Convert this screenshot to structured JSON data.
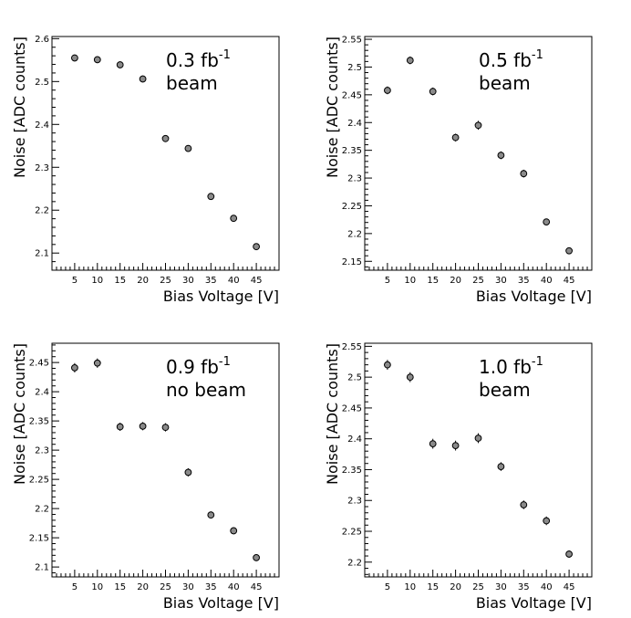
{
  "chart_data": [
    {
      "type": "scatter",
      "x": [
        5,
        10,
        15,
        20,
        25,
        30,
        35,
        40,
        45
      ],
      "values": [
        2.555,
        2.551,
        2.539,
        2.506,
        2.367,
        2.344,
        2.232,
        2.181,
        2.115
      ],
      "errors": [
        0.008,
        0.008,
        0.008,
        0.008,
        0.006,
        0.006,
        0.006,
        0.006,
        0.006
      ],
      "xlabel": "Bias Voltage [V]",
      "ylabel": "Noise [ADC counts]",
      "xlim": [
        0,
        50
      ],
      "ylim": [
        2.06,
        2.605
      ],
      "xticks": [
        5,
        10,
        15,
        20,
        25,
        30,
        35,
        40,
        45
      ],
      "xtick_labels": [
        "5",
        "10",
        "15",
        "20",
        "25",
        "30",
        "35",
        "40",
        "45"
      ],
      "yticks": [
        2.1,
        2.2,
        2.3,
        2.4,
        2.5,
        2.6
      ],
      "ytick_labels": [
        "2.1",
        "2.2",
        "2.3",
        "2.4",
        "2.5",
        "2.6"
      ],
      "annotation": {
        "lumi": "0.3 fb",
        "exponent": "-1",
        "condition": "beam"
      }
    },
    {
      "type": "scatter",
      "x": [
        5,
        10,
        15,
        20,
        25,
        30,
        35,
        40,
        45
      ],
      "values": [
        2.458,
        2.512,
        2.456,
        2.373,
        2.395,
        2.341,
        2.308,
        2.221,
        2.169
      ],
      "errors": [
        0.007,
        0.007,
        0.007,
        0.007,
        0.008,
        0.007,
        0.007,
        0.006,
        0.006
      ],
      "xlabel": "Bias Voltage [V]",
      "ylabel": "Noise [ADC counts]",
      "xlim": [
        0,
        50
      ],
      "ylim": [
        2.134,
        2.555
      ],
      "xticks": [
        5,
        10,
        15,
        20,
        25,
        30,
        35,
        40,
        45
      ],
      "xtick_labels": [
        "5",
        "10",
        "15",
        "20",
        "25",
        "30",
        "35",
        "40",
        "45"
      ],
      "yticks": [
        2.15,
        2.2,
        2.25,
        2.3,
        2.35,
        2.4,
        2.45,
        2.5,
        2.55
      ],
      "ytick_labels": [
        "2.15",
        "2.2",
        "2.25",
        "2.3",
        "2.35",
        "2.4",
        "2.45",
        "2.5",
        "2.55"
      ],
      "annotation": {
        "lumi": "0.5 fb",
        "exponent": "-1",
        "condition": "beam"
      }
    },
    {
      "type": "scatter",
      "x": [
        5,
        10,
        15,
        20,
        25,
        30,
        35,
        40,
        45
      ],
      "values": [
        2.441,
        2.449,
        2.34,
        2.341,
        2.339,
        2.262,
        2.189,
        2.162,
        2.116
      ],
      "errors": [
        0.008,
        0.008,
        0.007,
        0.007,
        0.007,
        0.007,
        0.006,
        0.006,
        0.006
      ],
      "xlabel": "Bias Voltage [V]",
      "ylabel": "Noise [ADC counts]",
      "xlim": [
        0,
        50
      ],
      "ylim": [
        2.083,
        2.483
      ],
      "xticks": [
        5,
        10,
        15,
        20,
        25,
        30,
        35,
        40,
        45
      ],
      "xtick_labels": [
        "5",
        "10",
        "15",
        "20",
        "25",
        "30",
        "35",
        "40",
        "45"
      ],
      "yticks": [
        2.1,
        2.15,
        2.2,
        2.25,
        2.3,
        2.35,
        2.4,
        2.45
      ],
      "ytick_labels": [
        "2.1",
        "2.15",
        "2.2",
        "2.25",
        "2.3",
        "2.35",
        "2.4",
        "2.45"
      ],
      "annotation": {
        "lumi": "0.9 fb",
        "exponent": "-1",
        "condition": "no beam"
      }
    },
    {
      "type": "scatter",
      "x": [
        5,
        10,
        15,
        20,
        25,
        30,
        35,
        40,
        45
      ],
      "values": [
        2.52,
        2.5,
        2.392,
        2.389,
        2.401,
        2.355,
        2.293,
        2.267,
        2.213
      ],
      "errors": [
        0.008,
        0.008,
        0.008,
        0.008,
        0.008,
        0.007,
        0.007,
        0.007,
        0.006
      ],
      "xlabel": "Bias Voltage [V]",
      "ylabel": "Noise [ADC counts]",
      "xlim": [
        0,
        50
      ],
      "ylim": [
        2.176,
        2.555
      ],
      "xticks": [
        5,
        10,
        15,
        20,
        25,
        30,
        35,
        40,
        45
      ],
      "xtick_labels": [
        "5",
        "10",
        "15",
        "20",
        "25",
        "30",
        "35",
        "40",
        "45"
      ],
      "yticks": [
        2.2,
        2.25,
        2.3,
        2.35,
        2.4,
        2.45,
        2.5,
        2.55
      ],
      "ytick_labels": [
        "2.2",
        "2.25",
        "2.3",
        "2.35",
        "2.4",
        "2.45",
        "2.5",
        "2.55"
      ],
      "annotation": {
        "lumi": "1.0 fb",
        "exponent": "-1",
        "condition": "beam"
      }
    }
  ]
}
